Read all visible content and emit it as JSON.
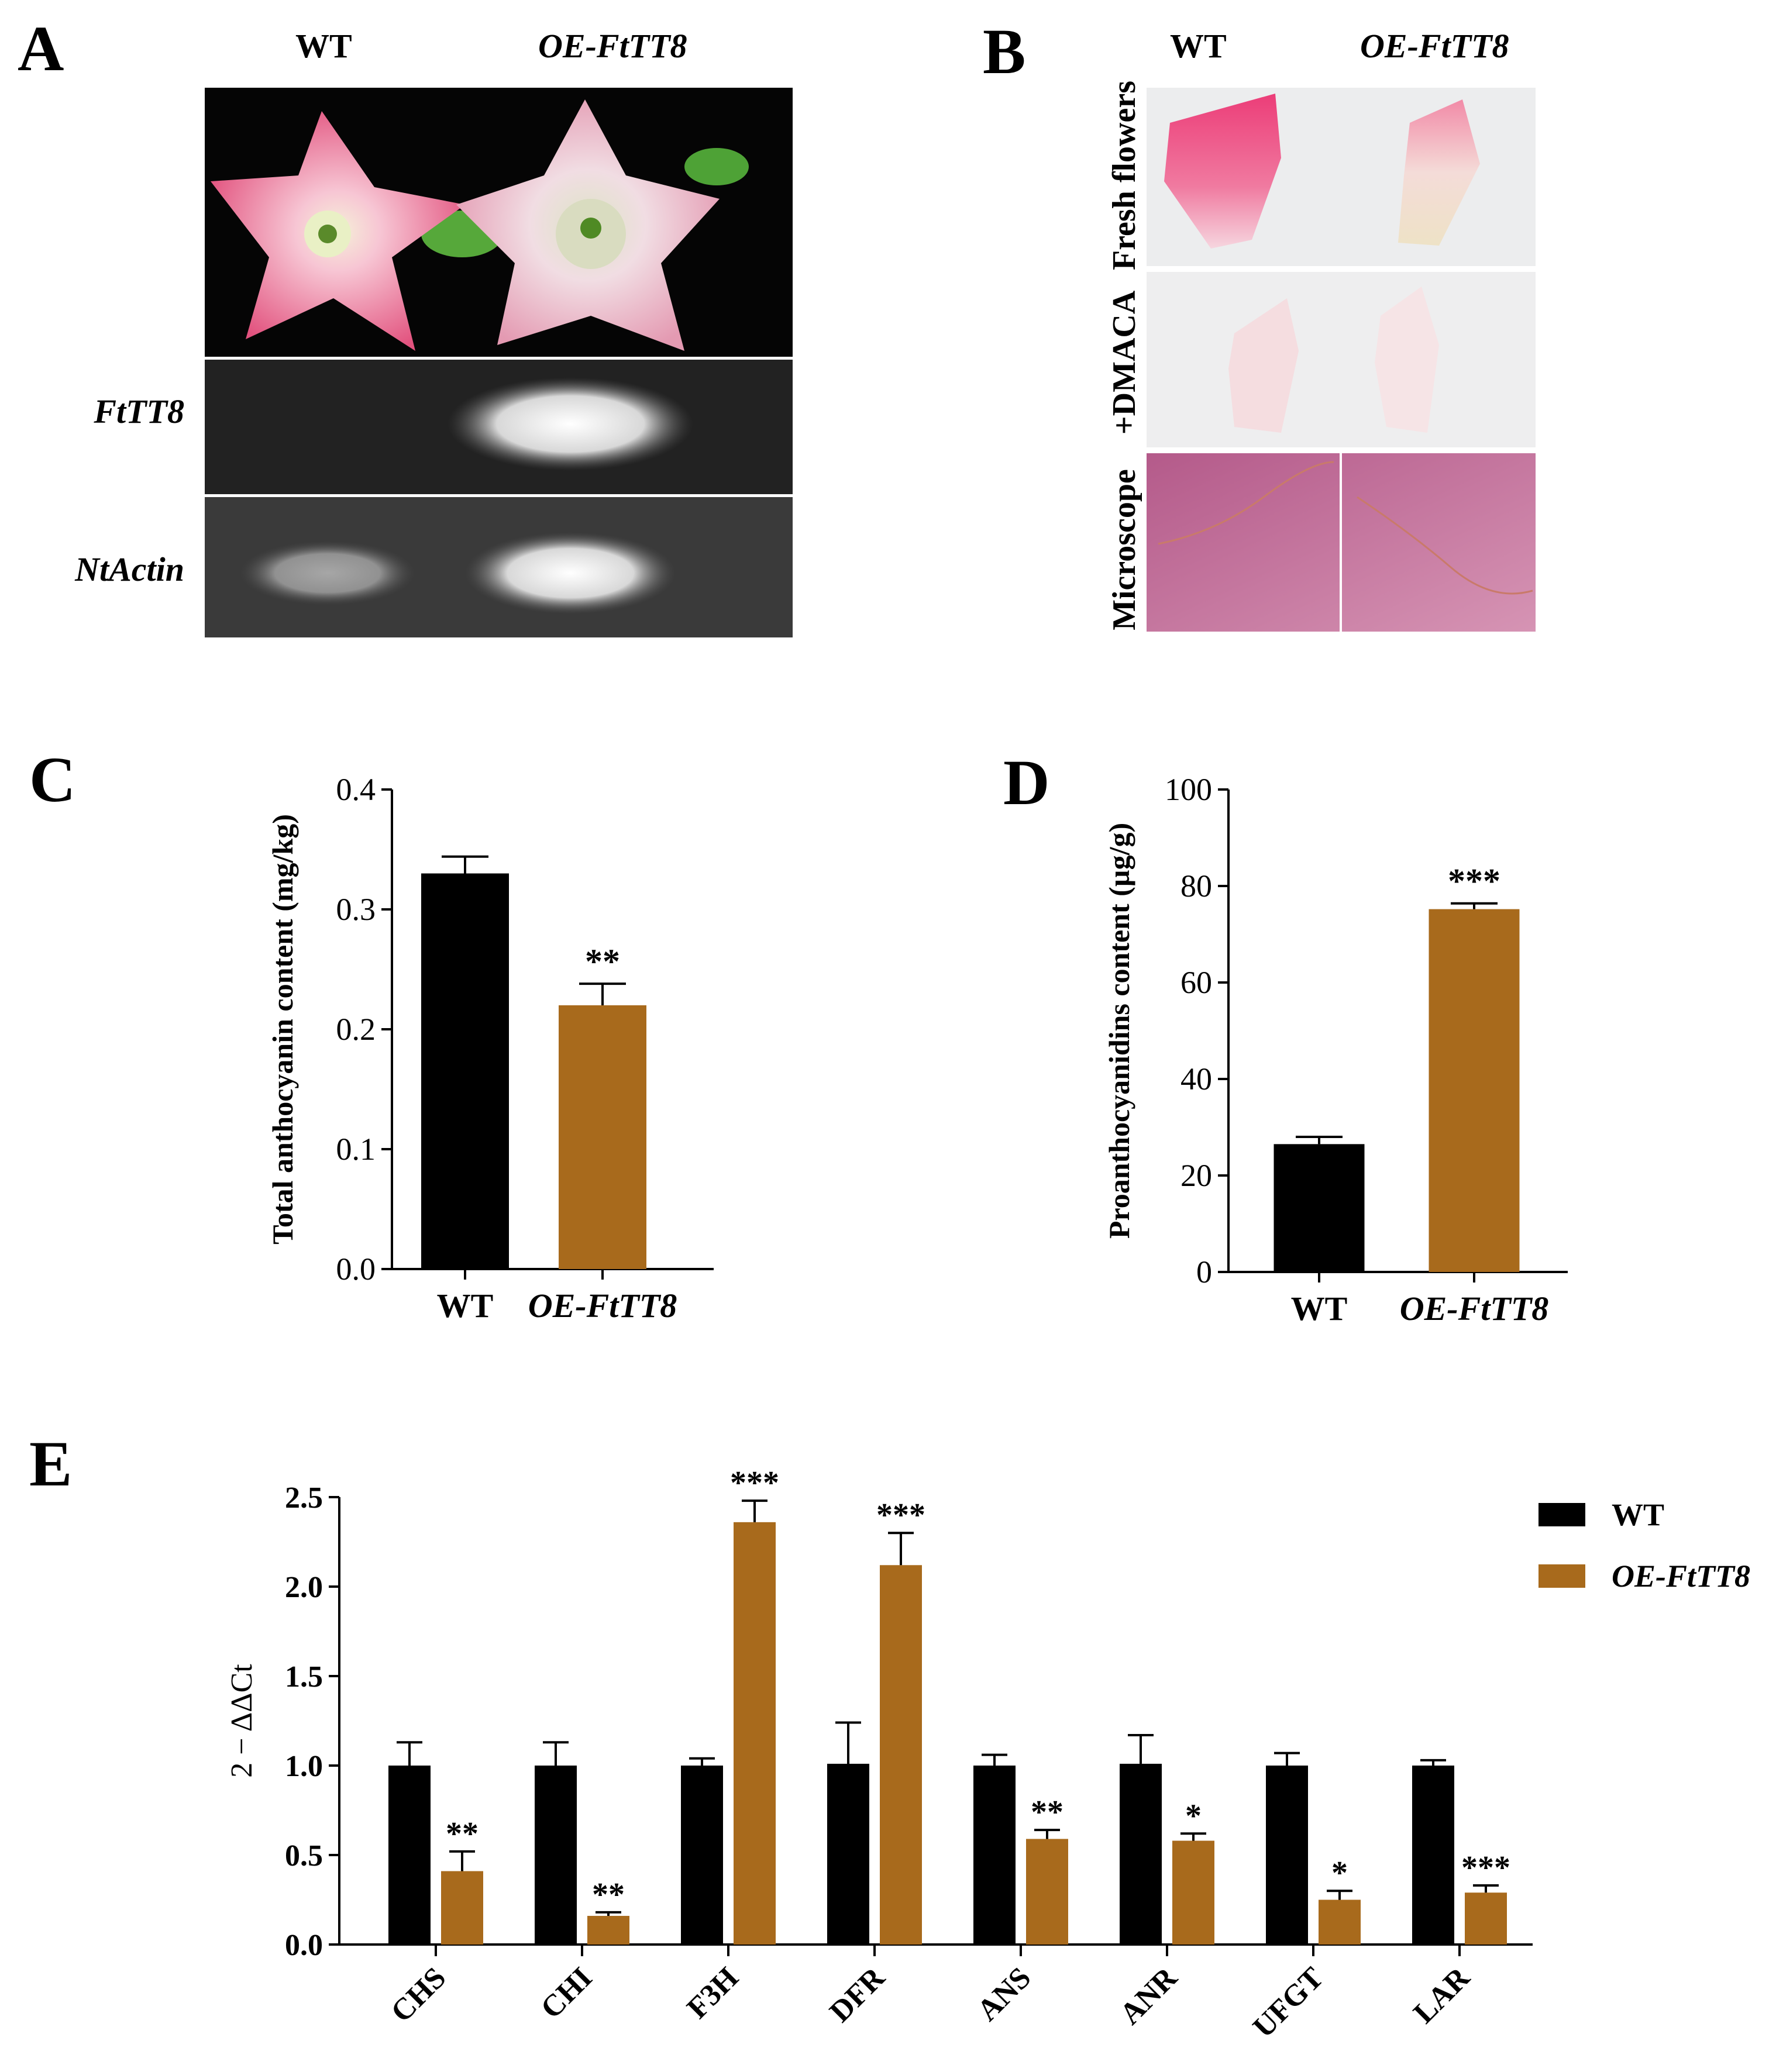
{
  "panel_a": {
    "letter": "A",
    "col_headers": [
      "WT",
      "OE-FtTT8"
    ],
    "gel_labels": [
      "FtTT8",
      "NtActin"
    ]
  },
  "panel_b": {
    "letter": "B",
    "col_headers": [
      "WT",
      "OE-FtTT8"
    ],
    "row_labels": [
      "Fresh flowers",
      "+DMACA",
      "Microscope"
    ]
  },
  "colors": {
    "wt": "#000000",
    "oe": "#A86A1C",
    "flower_pink": "#E86A8E",
    "gel_bg": "#222222"
  },
  "chart_data": [
    {
      "panel": "C",
      "type": "bar",
      "categories": [
        "WT",
        "OE-FtTT8"
      ],
      "values": [
        0.33,
        0.22
      ],
      "errors": [
        0.014,
        0.018
      ],
      "significance": [
        "",
        "**"
      ],
      "ylabel": "Total anthocyanin content (mg/kg)",
      "ylim": [
        0,
        0.4
      ],
      "yticks": [
        "0.0",
        "0.1",
        "0.2",
        "0.3",
        "0.4"
      ]
    },
    {
      "panel": "D",
      "type": "bar",
      "categories": [
        "WT",
        "OE-FtTT8"
      ],
      "values": [
        26.5,
        75.2
      ],
      "errors": [
        1.5,
        1.2
      ],
      "significance": [
        "",
        "***"
      ],
      "ylabel": "Proanthocyanidins content (µg/g)",
      "ylim": [
        0,
        100
      ],
      "yticks": [
        "0",
        "20",
        "40",
        "60",
        "80",
        "100"
      ]
    },
    {
      "panel": "E",
      "type": "bar",
      "categories": [
        "CHS",
        "CHI",
        "F3H",
        "DFR",
        "ANS",
        "ANR",
        "UFGT",
        "LAR"
      ],
      "series": [
        {
          "name": "WT",
          "values": [
            1.0,
            1.0,
            1.0,
            1.01,
            1.0,
            1.01,
            1.0,
            1.0
          ],
          "errors": [
            0.13,
            0.13,
            0.04,
            0.23,
            0.06,
            0.16,
            0.07,
            0.03
          ],
          "significance": [
            "",
            "",
            "",
            "",
            "",
            "",
            "",
            ""
          ]
        },
        {
          "name": "OE-FtTT8",
          "values": [
            0.41,
            0.16,
            2.36,
            2.12,
            0.59,
            0.58,
            0.25,
            0.29
          ],
          "errors": [
            0.11,
            0.02,
            0.12,
            0.18,
            0.05,
            0.04,
            0.05,
            0.04
          ],
          "significance": [
            "**",
            "**",
            "***",
            "***",
            "**",
            "*",
            "*",
            "***"
          ]
        }
      ],
      "ylabel": "2 − ΔΔCt",
      "ylim": [
        0,
        2.5
      ],
      "yticks": [
        "0.0",
        "0.5",
        "1.0",
        "1.5",
        "2.0",
        "2.5"
      ],
      "legend": "top-right"
    }
  ]
}
